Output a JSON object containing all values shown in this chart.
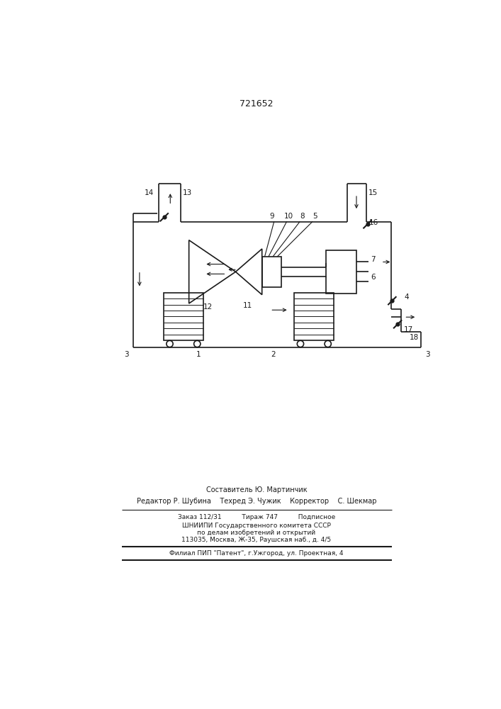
{
  "title": "721652",
  "bg_color": "#ffffff",
  "line_color": "#1a1a1a",
  "footer_line1": "Составитель Ю. Мартинчик",
  "footer_line2": "Редактор Р. Шубина    Техред Э. Чужик    Корректор    С. Шекмар",
  "footer_line3": "Заказ 112/31          Тираж 747          Подписное",
  "footer_line4": "ШНИИПИ Государственного комитета СССР",
  "footer_line5": "по делам изобретений и открытий",
  "footer_line6": "113035, Москва, Ж-35, Раушская наб., д. 4/5",
  "footer_line7": "Филиал ПИП \"Патент\", г.Ужгород, ул. Проектная, 4"
}
